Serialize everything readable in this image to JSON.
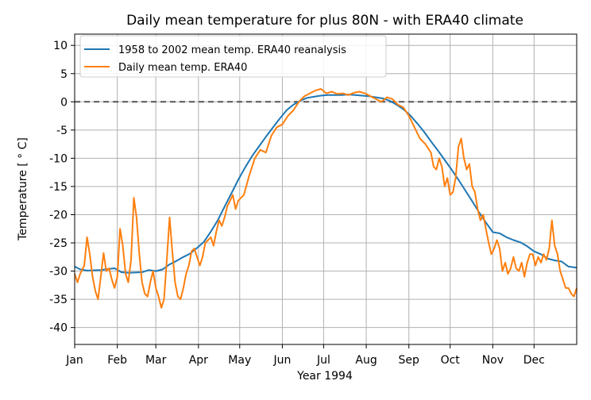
{
  "chart_data": {
    "type": "line",
    "title": "Daily mean temperature for plus 80N - with ERA40 climate",
    "xlabel": "Year 1994",
    "ylabel": "Temperature [$^\\circ$C]",
    "ylabel_display": "Temperature [ ° C]",
    "xlim": [
      1,
      366
    ],
    "ylim": [
      -43,
      12
    ],
    "yticks": [
      10,
      5,
      0,
      -5,
      -10,
      -15,
      -20,
      -25,
      -30,
      -35,
      -40
    ],
    "xticks": [
      {
        "day": 1,
        "label": "Jan"
      },
      {
        "day": 32,
        "label": "Feb"
      },
      {
        "day": 60,
        "label": "Mar"
      },
      {
        "day": 91,
        "label": "Apr"
      },
      {
        "day": 121,
        "label": "May"
      },
      {
        "day": 152,
        "label": "Jun"
      },
      {
        "day": 182,
        "label": "Jul"
      },
      {
        "day": 213,
        "label": "Aug"
      },
      {
        "day": 244,
        "label": "Sep"
      },
      {
        "day": 274,
        "label": "Oct"
      },
      {
        "day": 305,
        "label": "Nov"
      },
      {
        "day": 335,
        "label": "Dec"
      }
    ],
    "grid": true,
    "legend_position": "top-left",
    "reference_line": {
      "y": 0,
      "style": "dashed",
      "color": "#555555"
    },
    "series": [
      {
        "name": "1958 to 2002 mean temp. ERA40 reanalysis",
        "color": "#1f77b4",
        "x": [
          1,
          5,
          10,
          20,
          30,
          35,
          40,
          50,
          55,
          60,
          65,
          70,
          75,
          80,
          85,
          90,
          95,
          100,
          105,
          110,
          115,
          120,
          125,
          130,
          135,
          140,
          145,
          150,
          155,
          160,
          165,
          170,
          175,
          180,
          185,
          190,
          195,
          200,
          205,
          210,
          215,
          220,
          225,
          230,
          235,
          240,
          245,
          250,
          255,
          260,
          265,
          270,
          275,
          280,
          285,
          290,
          295,
          300,
          305,
          310,
          315,
          320,
          325,
          330,
          335,
          340,
          345,
          350,
          355,
          360,
          366
        ],
        "y": [
          -29.2,
          -29.7,
          -29.9,
          -29.8,
          -29.5,
          -30.2,
          -30.3,
          -30.2,
          -29.8,
          -30.0,
          -29.7,
          -28.8,
          -28.2,
          -27.5,
          -26.9,
          -25.9,
          -24.8,
          -23.0,
          -21.0,
          -18.6,
          -16.2,
          -13.8,
          -11.6,
          -9.6,
          -7.9,
          -6.2,
          -4.6,
          -3.0,
          -1.5,
          -0.5,
          0.2,
          0.7,
          0.9,
          1.1,
          1.2,
          1.2,
          1.2,
          1.3,
          1.2,
          1.1,
          1.0,
          0.8,
          0.6,
          0.2,
          -0.5,
          -1.3,
          -2.4,
          -3.8,
          -5.3,
          -7.0,
          -8.6,
          -10.3,
          -12.0,
          -13.8,
          -15.7,
          -17.6,
          -19.6,
          -21.4,
          -23.1,
          -23.3,
          -24.0,
          -24.5,
          -24.9,
          -25.6,
          -26.5,
          -27.0,
          -27.8,
          -28.1,
          -28.3,
          -29.2,
          -29.4
        ]
      },
      {
        "name": "Daily mean temp. ERA40",
        "color": "#ff7f0e",
        "x": [
          1,
          3,
          5,
          8,
          10,
          12,
          14,
          16,
          18,
          20,
          22,
          24,
          26,
          28,
          30,
          32,
          34,
          36,
          38,
          40,
          42,
          44,
          46,
          48,
          50,
          52,
          54,
          56,
          58,
          60,
          62,
          64,
          66,
          68,
          70,
          72,
          74,
          76,
          78,
          80,
          82,
          84,
          86,
          88,
          90,
          92,
          94,
          96,
          98,
          100,
          102,
          104,
          106,
          108,
          110,
          112,
          114,
          116,
          118,
          120,
          124,
          128,
          132,
          136,
          140,
          144,
          148,
          152,
          156,
          160,
          164,
          168,
          172,
          176,
          180,
          184,
          188,
          192,
          196,
          200,
          204,
          208,
          212,
          216,
          220,
          224,
          228,
          232,
          236,
          240,
          244,
          248,
          252,
          256,
          260,
          262,
          264,
          266,
          268,
          270,
          272,
          274,
          276,
          278,
          280,
          282,
          284,
          286,
          288,
          290,
          292,
          294,
          296,
          298,
          300,
          302,
          304,
          306,
          308,
          310,
          312,
          314,
          316,
          318,
          320,
          322,
          324,
          326,
          328,
          330,
          332,
          334,
          336,
          338,
          340,
          342,
          344,
          346,
          348,
          350,
          352,
          354,
          356,
          358,
          360,
          362,
          364,
          366
        ],
        "y": [
          -30.5,
          -32.0,
          -30.5,
          -29.0,
          -24.0,
          -27.0,
          -31.0,
          -33.5,
          -35.0,
          -31.0,
          -26.8,
          -30.0,
          -29.5,
          -31.5,
          -33.0,
          -31.0,
          -22.5,
          -25.5,
          -30.5,
          -32.0,
          -28.0,
          -17.0,
          -20.5,
          -27.0,
          -32.0,
          -34.0,
          -34.5,
          -32.0,
          -30.0,
          -33.0,
          -34.5,
          -36.5,
          -35.0,
          -28.0,
          -20.5,
          -26.5,
          -32.0,
          -34.5,
          -35.0,
          -33.0,
          -30.5,
          -29.0,
          -26.5,
          -26.0,
          -27.5,
          -29.0,
          -27.5,
          -25.0,
          -24.5,
          -24.0,
          -25.5,
          -23.0,
          -21.0,
          -22.0,
          -20.5,
          -18.5,
          -17.5,
          -16.5,
          -19.0,
          -17.5,
          -16.5,
          -13.0,
          -10.0,
          -8.5,
          -9.0,
          -6.0,
          -4.5,
          -4.0,
          -2.5,
          -1.5,
          0.0,
          1.0,
          1.5,
          2.0,
          2.3,
          1.5,
          1.8,
          1.4,
          1.5,
          1.2,
          1.6,
          1.8,
          1.5,
          1.0,
          0.5,
          0.0,
          0.8,
          0.5,
          -0.5,
          -1.0,
          -2.5,
          -4.5,
          -6.5,
          -7.5,
          -9.0,
          -11.5,
          -12.0,
          -10.0,
          -11.5,
          -15.0,
          -13.5,
          -16.5,
          -16.0,
          -13.5,
          -8.0,
          -6.5,
          -10.0,
          -12.0,
          -11.0,
          -15.0,
          -16.0,
          -19.0,
          -21.0,
          -20.0,
          -22.5,
          -25.0,
          -27.0,
          -26.0,
          -24.5,
          -26.0,
          -30.0,
          -28.5,
          -30.5,
          -29.5,
          -27.5,
          -29.5,
          -30.0,
          -28.5,
          -31.0,
          -28.5,
          -27.0,
          -27.0,
          -29.0,
          -27.5,
          -28.5,
          -27.0,
          -28.0,
          -26.0,
          -21.0,
          -25.5,
          -27.0,
          -30.0,
          -31.5,
          -33.0,
          -33.0,
          -34.0,
          -34.5,
          -33.0
        ]
      }
    ]
  }
}
